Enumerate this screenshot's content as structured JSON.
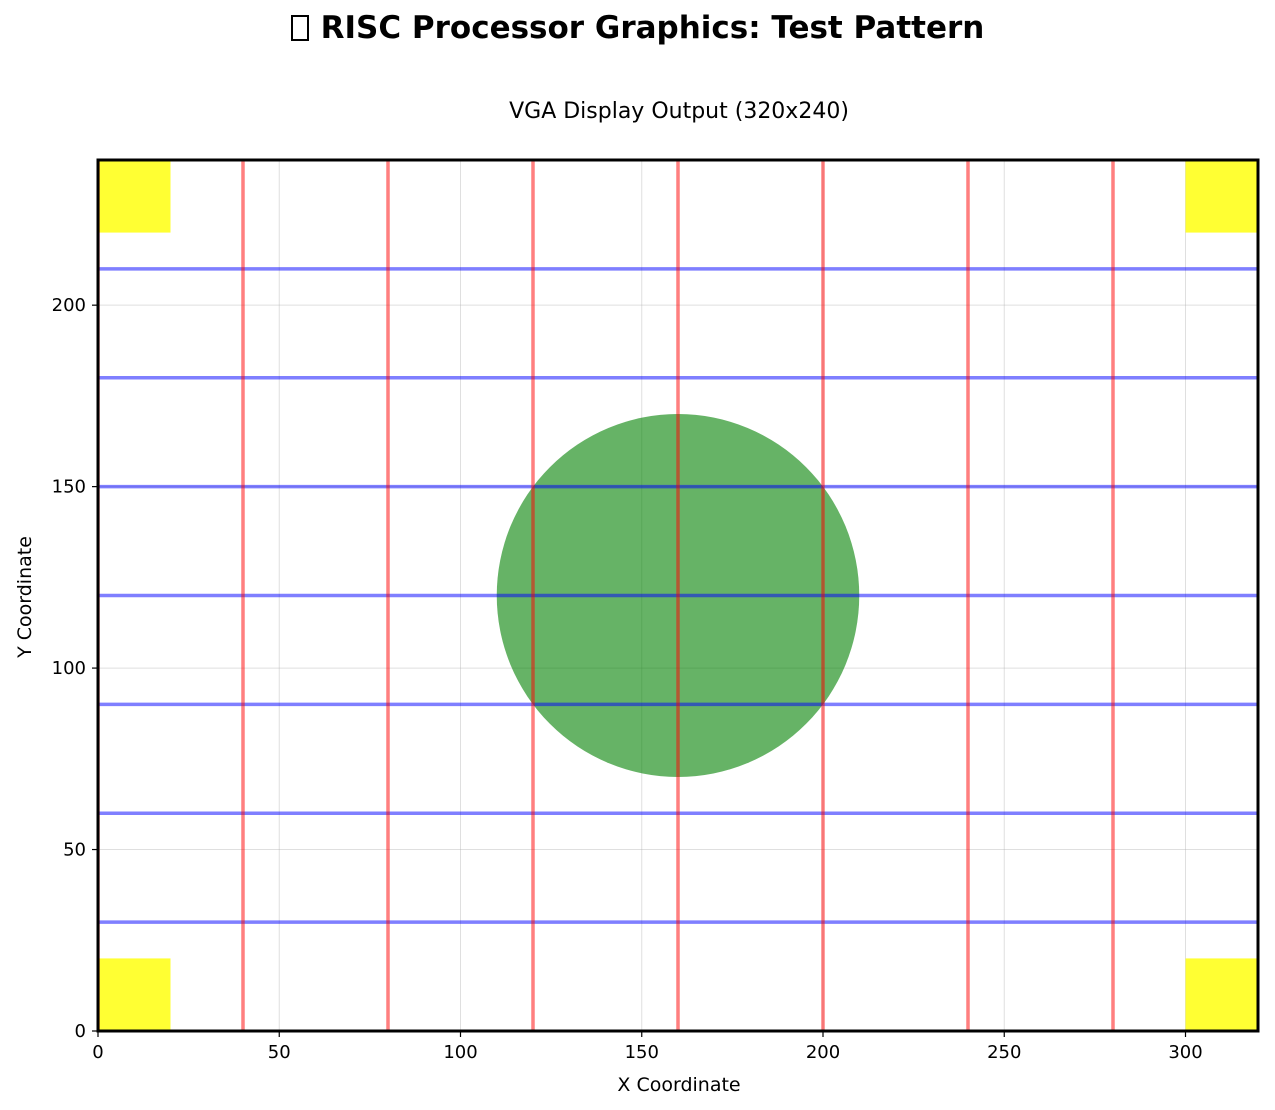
{
  "title": "RISC Processor Graphics: Test Pattern",
  "title_icon": "missing-glyph-icon",
  "chart_data": {
    "type": "scatter",
    "subtitle": "VGA Display Output (320x240)",
    "xlabel": "X Coordinate",
    "ylabel": "Y Coordinate",
    "xlim": [
      0,
      320
    ],
    "ylim": [
      0,
      240
    ],
    "xticks": [
      0,
      50,
      100,
      150,
      200,
      250,
      300
    ],
    "yticks": [
      0,
      50,
      100,
      150,
      200
    ],
    "grid": true,
    "vertical_lines": {
      "x": [
        0,
        40,
        80,
        120,
        160,
        200,
        240,
        280
      ],
      "color": "#ff0000",
      "alpha": 0.5
    },
    "horizontal_lines": {
      "y": [
        30,
        60,
        90,
        120,
        150,
        180,
        210
      ],
      "color": "#0000ff",
      "alpha": 0.5
    },
    "circle": {
      "cx": 160,
      "cy": 120,
      "r": 50,
      "color": "#008000",
      "alpha": 0.6
    },
    "corner_squares": {
      "size": 20,
      "color": "#ffff00",
      "alpha": 0.8,
      "positions": [
        [
          0,
          0
        ],
        [
          300,
          0
        ],
        [
          0,
          220
        ],
        [
          300,
          220
        ]
      ]
    }
  }
}
